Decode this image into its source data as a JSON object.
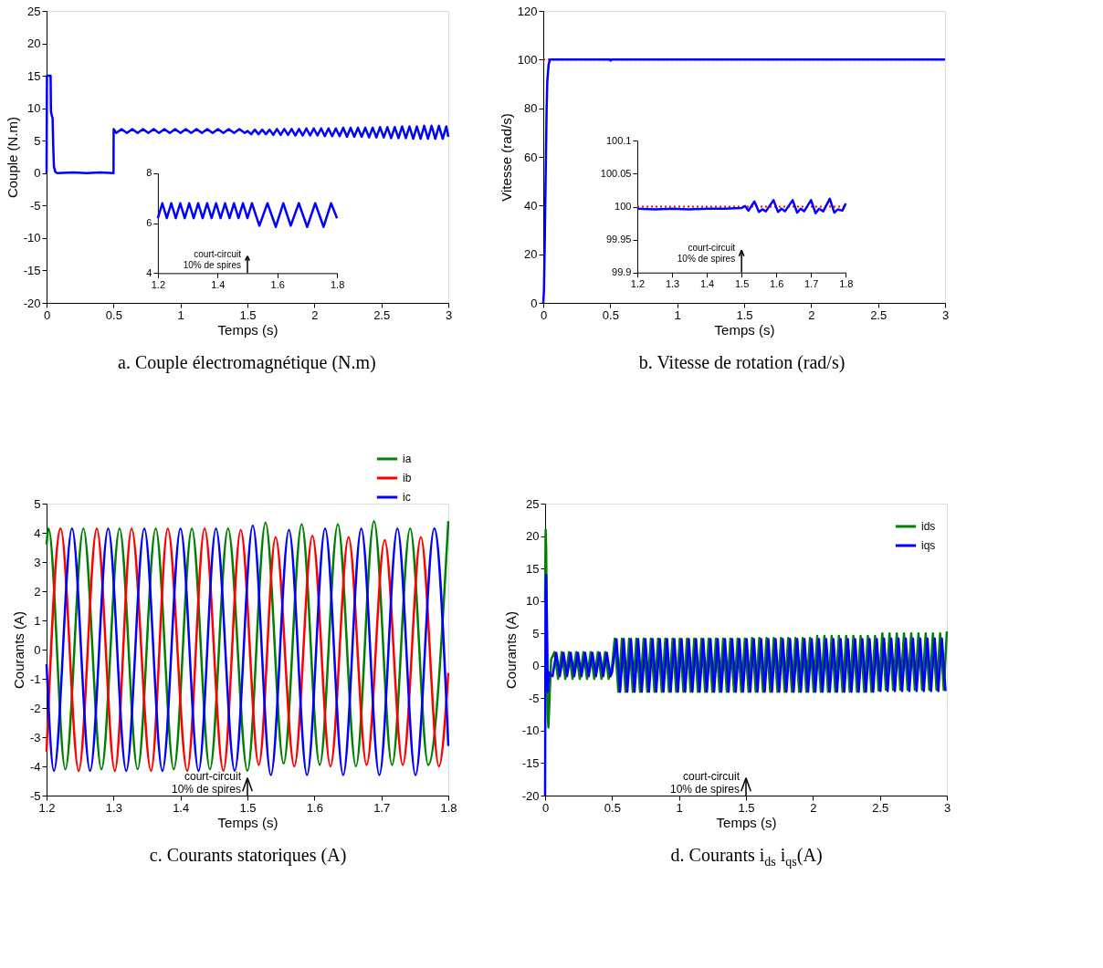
{
  "chart_data": [
    {
      "type": "line",
      "title": "a. Couple électromagnétique (N.m)",
      "xlabel": "Temps (s)",
      "ylabel": "Couple (N.m)",
      "xlim": [
        0,
        3
      ],
      "xticks": [
        0,
        0.5,
        1,
        1.5,
        2,
        2.5,
        3
      ],
      "ylim": [
        -20,
        25
      ],
      "yticks": [
        -20,
        -15,
        -10,
        -5,
        0,
        5,
        10,
        15,
        20,
        25
      ],
      "series": [
        {
          "color": "#0000ff",
          "x": [
            0,
            0.003,
            0.03,
            0.033,
            0.04,
            0.045,
            0.05,
            0.055,
            0.065,
            0.08,
            0.2,
            0.3,
            0.4,
            0.5,
            0.501,
            0.52,
            0.56,
            0.6,
            0.64,
            0.68,
            0.72,
            0.76,
            0.8,
            0.84,
            0.88,
            0.92,
            0.96,
            1.0,
            1.04,
            1.08,
            1.12,
            1.16,
            1.2,
            1.24,
            1.28,
            1.32,
            1.36,
            1.4,
            1.44,
            1.48,
            1.5,
            1.528,
            1.555,
            1.583,
            1.61,
            1.638,
            1.665,
            1.693,
            1.72,
            1.748,
            1.775,
            1.803,
            1.83,
            1.858,
            1.885,
            1.913,
            1.94,
            1.968,
            1.995,
            2.023,
            2.05,
            2.078,
            2.105,
            2.133,
            2.16,
            2.188,
            2.215,
            2.243,
            2.27,
            2.298,
            2.325,
            2.353,
            2.38,
            2.408,
            2.435,
            2.463,
            2.49,
            2.518,
            2.545,
            2.573,
            2.6,
            2.628,
            2.655,
            2.683,
            2.71,
            2.738,
            2.765,
            2.793,
            2.82,
            2.848,
            2.875,
            2.903,
            2.93,
            2.958,
            2.985,
            3.0
          ],
          "values": [
            0,
            15,
            15,
            9.5,
            8.8,
            8.5,
            4,
            1,
            0.2,
            0,
            0.1,
            0,
            0.1,
            0,
            6.8,
            6.2,
            6.8,
            6.2,
            6.8,
            6.2,
            6.8,
            6.2,
            6.8,
            6.2,
            6.8,
            6.2,
            6.8,
            6.2,
            6.8,
            6.2,
            6.8,
            6.2,
            6.8,
            6.2,
            6.8,
            6.2,
            6.8,
            6.2,
            6.8,
            6.2,
            6.5,
            6.0,
            6.7,
            6.0,
            6.7,
            6.0,
            6.7,
            5.9,
            6.8,
            5.9,
            6.8,
            5.9,
            6.8,
            5.8,
            6.8,
            5.8,
            6.9,
            5.8,
            6.9,
            5.8,
            6.9,
            5.7,
            6.9,
            5.7,
            6.9,
            5.7,
            7.0,
            5.6,
            7.0,
            5.6,
            7.0,
            5.6,
            7.0,
            5.5,
            7.0,
            5.5,
            7.1,
            5.5,
            7.1,
            5.4,
            7.1,
            5.4,
            7.2,
            5.4,
            7.2,
            5.3,
            7.2,
            5.3,
            7.3,
            5.3,
            7.3,
            5.3,
            7.3,
            5.3,
            7.2,
            5.6
          ]
        }
      ]
    },
    {
      "type": "line",
      "xlim": [
        1.2,
        1.8
      ],
      "xticks": [
        1.2,
        1.4,
        1.6,
        1.8
      ],
      "ylim": [
        4,
        8
      ],
      "yticks": [
        4,
        6,
        8
      ],
      "series": [
        {
          "color": "#0000ff",
          "x": [
            1.2,
            1.215,
            1.23,
            1.245,
            1.26,
            1.275,
            1.29,
            1.305,
            1.32,
            1.335,
            1.35,
            1.365,
            1.38,
            1.395,
            1.41,
            1.425,
            1.44,
            1.455,
            1.47,
            1.485,
            1.5,
            1.515,
            1.54,
            1.567,
            1.595,
            1.62,
            1.645,
            1.672,
            1.7,
            1.727,
            1.755,
            1.78,
            1.8
          ],
          "values": [
            6.2,
            6.8,
            6.2,
            6.8,
            6.2,
            6.8,
            6.2,
            6.8,
            6.2,
            6.8,
            6.2,
            6.8,
            6.2,
            6.8,
            6.2,
            6.8,
            6.2,
            6.8,
            6.2,
            6.8,
            6.2,
            6.8,
            5.9,
            6.8,
            5.85,
            6.8,
            5.9,
            6.8,
            5.85,
            6.8,
            5.85,
            6.8,
            6.2
          ]
        }
      ],
      "annotations": [
        "court-circuit\n10% de spires"
      ]
    },
    {
      "type": "line",
      "title": "b. Vitesse de rotation (rad/s)",
      "xlabel": "Temps (s)",
      "ylabel": "Vitesse (rad/s)",
      "xlim": [
        0,
        3
      ],
      "xticks": [
        0,
        0.5,
        1,
        1.5,
        2,
        2.5,
        3
      ],
      "ylim": [
        0,
        120
      ],
      "yticks": [
        0,
        20,
        40,
        60,
        80,
        100,
        120
      ],
      "ref_lines": [
        {
          "axis": "y",
          "value": 100,
          "color": "#ff0000",
          "line_style": "dotted"
        }
      ],
      "series": [
        {
          "color": "#0000ff",
          "x": [
            0,
            0.005,
            0.01,
            0.015,
            0.02,
            0.025,
            0.03,
            0.04,
            0.05,
            0.5,
            0.502,
            0.51,
            3
          ],
          "values": [
            0,
            5,
            21,
            41,
            61,
            80,
            91,
            98,
            100,
            100,
            99.6,
            100,
            100
          ]
        }
      ]
    },
    {
      "type": "line",
      "xlim": [
        1.2,
        1.8
      ],
      "xticks": [
        1.2,
        1.3,
        1.4,
        1.5,
        1.6,
        1.7,
        1.8
      ],
      "ylim": [
        99.9,
        100.1
      ],
      "yticks": [
        99.9,
        99.95,
        100,
        100.05,
        100.1
      ],
      "ref_lines": [
        {
          "axis": "y",
          "value": 100,
          "color": "#ff0000",
          "line_style": "dotted"
        }
      ],
      "series": [
        {
          "color": "#0000ff",
          "x": [
            1.2,
            1.25,
            1.3,
            1.35,
            1.4,
            1.45,
            1.5,
            1.51,
            1.52,
            1.537,
            1.55,
            1.56,
            1.57,
            1.592,
            1.605,
            1.615,
            1.625,
            1.647,
            1.66,
            1.67,
            1.68,
            1.7,
            1.713,
            1.723,
            1.735,
            1.754,
            1.767,
            1.777,
            1.79,
            1.8
          ],
          "values": [
            99.997,
            99.996,
            99.997,
            99.996,
            99.997,
            99.997,
            99.998,
            100.001,
            99.994,
            100.008,
            99.992,
            99.996,
            99.993,
            100.01,
            99.992,
            99.997,
            99.993,
            100.01,
            99.991,
            99.997,
            99.993,
            100.01,
            99.99,
            99.997,
            99.993,
            100.012,
            99.991,
            99.996,
            99.994,
            100.005
          ]
        }
      ],
      "annotations": [
        "court-circuit\n10% de spires"
      ]
    },
    {
      "type": "line",
      "title": "c. Courants statoriques (A)",
      "xlabel": "Temps (s)",
      "ylabel": "Courants (A)",
      "xlim": [
        1.2,
        1.8
      ],
      "xticks": [
        1.2,
        1.3,
        1.4,
        1.5,
        1.6,
        1.7,
        1.8
      ],
      "ylim": [
        -5,
        5
      ],
      "yticks": [
        -5,
        -4,
        -3,
        -2,
        -1,
        0,
        1,
        2,
        3,
        4,
        5
      ],
      "legend": "top",
      "series": [
        {
          "name": "ia",
          "color": "#008000",
          "x": [
            1.2,
            1.203,
            1.228,
            1.255,
            1.282,
            1.309,
            1.336,
            1.363,
            1.39,
            1.417,
            1.444,
            1.471,
            1.5,
            1.527,
            1.554,
            1.581,
            1.608,
            1.635,
            1.662,
            1.689,
            1.716,
            1.743,
            1.77,
            1.8
          ],
          "values": [
            3.6,
            4.15,
            -4.1,
            4.15,
            -4.1,
            4.15,
            -4.1,
            4.15,
            -4.1,
            4.15,
            -4.1,
            4.15,
            -4.15,
            4.35,
            -3.9,
            4.3,
            -3.95,
            4.3,
            -4.0,
            4.4,
            -3.95,
            4.15,
            -3.95,
            4.4
          ]
        },
        {
          "name": "ib",
          "color": "#ff0000",
          "x": [
            1.2,
            1.221,
            1.248,
            1.275,
            1.302,
            1.327,
            1.356,
            1.381,
            1.41,
            1.436,
            1.464,
            1.49,
            1.517,
            1.542,
            1.57,
            1.597,
            1.624,
            1.651,
            1.678,
            1.705,
            1.732,
            1.759,
            1.786,
            1.8
          ],
          "values": [
            -3.5,
            4.15,
            -4.15,
            4.15,
            -4.15,
            4.15,
            -4.15,
            4.15,
            -4.15,
            4.15,
            -4.15,
            4.1,
            -3.95,
            3.85,
            -4.0,
            3.9,
            -4.0,
            3.85,
            -3.95,
            3.75,
            -3.95,
            3.85,
            -4.0,
            -0.8
          ]
        },
        {
          "name": "ic",
          "color": "#0000ff",
          "x": [
            1.2,
            1.211,
            1.238,
            1.265,
            1.292,
            1.319,
            1.346,
            1.373,
            1.4,
            1.427,
            1.453,
            1.481,
            1.508,
            1.535,
            1.562,
            1.589,
            1.616,
            1.643,
            1.67,
            1.697,
            1.724,
            1.751,
            1.779,
            1.8
          ],
          "values": [
            -0.5,
            -4.15,
            4.15,
            -4.15,
            4.15,
            -4.15,
            4.15,
            -4.15,
            4.15,
            -4.15,
            4.15,
            -4.15,
            4.25,
            -4.3,
            4.1,
            -4.3,
            4.15,
            -4.3,
            4.15,
            -4.3,
            4.15,
            -4.3,
            4.15,
            -3.3
          ]
        }
      ],
      "annotations": [
        "court-circuit\n10% de spires"
      ]
    },
    {
      "type": "line",
      "title": "d. Courants i$_{ds}$ i$_{qs}$(A)",
      "xlabel": "Temps (s)",
      "ylabel": "Courants (A)",
      "xlim": [
        0,
        3
      ],
      "xticks": [
        0,
        0.5,
        1,
        1.5,
        2,
        2.5,
        3
      ],
      "ylim": [
        -20,
        25
      ],
      "yticks": [
        -20,
        -15,
        -10,
        -5,
        0,
        5,
        10,
        15,
        20,
        25
      ],
      "legend": "top right",
      "series": [
        {
          "name": "ids",
          "color": "#008000",
          "x": [
            0,
            0.004,
            0.008,
            0.015,
            0.02,
            0.025,
            0.035,
            0.045,
            0.07,
            0.097,
            0.124,
            0.151,
            0.178,
            0.205,
            0.232,
            0.259,
            0.286,
            0.313,
            0.34,
            0.367,
            0.394,
            0.421,
            0.448,
            0.475,
            0.5,
            0.52,
            0.547,
            0.574,
            0.601,
            0.628,
            0.655,
            0.682,
            0.709,
            0.736,
            0.763,
            0.79,
            0.817,
            0.844,
            0.871,
            0.898,
            0.925,
            0.952,
            0.979,
            1.006,
            1.033,
            1.06,
            1.087,
            1.114,
            1.141,
            1.168,
            1.195,
            1.222,
            1.249,
            1.276,
            1.303,
            1.33,
            1.357,
            1.384,
            1.411,
            1.438,
            1.465,
            1.492,
            1.519,
            1.546,
            1.573,
            1.6,
            1.627,
            1.654,
            1.681,
            1.708,
            1.735,
            1.762,
            1.789,
            1.816,
            1.843,
            1.87,
            1.897,
            1.924,
            1.951,
            1.978,
            2.005,
            2.032,
            2.059,
            2.086,
            2.113,
            2.14,
            2.167,
            2.194,
            2.221,
            2.248,
            2.275,
            2.302,
            2.329,
            2.356,
            2.383,
            2.41,
            2.437,
            2.464,
            2.491,
            2.518,
            2.545,
            2.572,
            2.599,
            2.626,
            2.653,
            2.68,
            2.707,
            2.734,
            2.761,
            2.788,
            2.815,
            2.842,
            2.869,
            2.896,
            2.923,
            2.95,
            2.977,
            3.0
          ],
          "values": [
            10,
            21,
            18,
            -2,
            -8,
            -9.5,
            -4,
            1,
            2.1,
            -2.0,
            2.1,
            -2.0,
            2.1,
            -2.0,
            2.1,
            -2.0,
            2.1,
            -2.0,
            2.1,
            -2.0,
            2.1,
            -2.0,
            2.1,
            -2.0,
            0,
            4.2,
            -4.0,
            4.2,
            -4.0,
            4.2,
            -4.0,
            4.2,
            -4.0,
            4.2,
            -4.0,
            4.2,
            -4.0,
            4.2,
            -4.0,
            4.2,
            -4.0,
            4.2,
            -4.0,
            4.2,
            -4.0,
            4.2,
            -4.0,
            4.2,
            -4.0,
            4.2,
            -4.0,
            4.2,
            -4.0,
            4.2,
            -4.0,
            4.2,
            -4.0,
            4.2,
            -4.0,
            4.2,
            -4.0,
            4.2,
            -4.0,
            4.3,
            -4.0,
            4.3,
            -4.0,
            4.3,
            -4.0,
            4.3,
            -4.0,
            4.3,
            -4.0,
            4.3,
            -4.0,
            4.3,
            -4.0,
            4.3,
            -4.0,
            4.3,
            -4.0,
            4.6,
            -4.0,
            4.6,
            -4.0,
            4.6,
            -4.0,
            4.6,
            -4.0,
            4.6,
            -4.0,
            4.6,
            -4.0,
            4.6,
            -4.0,
            4.6,
            -4.0,
            4.6,
            -3.8,
            5.0,
            -3.7,
            5.0,
            -3.7,
            5.0,
            -3.7,
            5.0,
            -3.7,
            5.0,
            -3.7,
            5.0,
            -3.7,
            5.0,
            -3.7,
            5.0,
            -3.7,
            5.0,
            -3.7,
            5.3
          ]
        },
        {
          "name": "iqs",
          "color": "#0000ff",
          "x": [
            0,
            0.003,
            0.008,
            0.013,
            0.02,
            0.03,
            0.045,
            0.056,
            0.083,
            0.11,
            0.137,
            0.164,
            0.191,
            0.218,
            0.245,
            0.272,
            0.299,
            0.326,
            0.353,
            0.38,
            0.407,
            0.434,
            0.461,
            0.488,
            0.5,
            0.533,
            0.56,
            0.587,
            0.614,
            0.641,
            0.668,
            0.695,
            0.722,
            0.749,
            0.776,
            0.803,
            0.83,
            0.857,
            0.884,
            0.911,
            0.938,
            0.965,
            0.992,
            1.019,
            1.046,
            1.073,
            1.1,
            1.127,
            1.154,
            1.181,
            1.208,
            1.235,
            1.262,
            1.289,
            1.316,
            1.343,
            1.37,
            1.397,
            1.424,
            1.451,
            1.478,
            1.505,
            1.532,
            1.559,
            1.586,
            1.613,
            1.64,
            1.667,
            1.694,
            1.721,
            1.748,
            1.775,
            1.802,
            1.829,
            1.856,
            1.883,
            1.91,
            1.937,
            1.964,
            1.991,
            2.018,
            2.045,
            2.072,
            2.099,
            2.126,
            2.153,
            2.18,
            2.207,
            2.234,
            2.261,
            2.288,
            2.315,
            2.342,
            2.369,
            2.396,
            2.423,
            2.45,
            2.477,
            2.504,
            2.531,
            2.558,
            2.585,
            2.612,
            2.639,
            2.666,
            2.693,
            2.72,
            2.747,
            2.774,
            2.801,
            2.828,
            2.855,
            2.882,
            2.909,
            2.936,
            2.963,
            2.99
          ],
          "values": [
            -20,
            10,
            14,
            8,
            -4,
            -1,
            -1.5,
            -1.6,
            2.0,
            -1.6,
            2.0,
            -1.6,
            2.0,
            -1.6,
            2.0,
            -1.6,
            2.0,
            -1.6,
            2.0,
            -1.6,
            2.0,
            -1.6,
            2.0,
            -1.6,
            -1,
            4.1,
            -4.0,
            4.1,
            -4.0,
            4.1,
            -4.0,
            4.1,
            -4.0,
            4.1,
            -4.0,
            4.1,
            -4.0,
            4.1,
            -4.0,
            4.1,
            -4.0,
            4.1,
            -4.0,
            4.1,
            -4.0,
            4.1,
            -4.0,
            4.1,
            -4.0,
            4.1,
            -4.0,
            4.1,
            -4.0,
            4.1,
            -4.0,
            4.1,
            -4.0,
            4.1,
            -4.0,
            4.1,
            -4.0,
            4.1,
            -4.0,
            4.1,
            -4.0,
            4.1,
            -4.0,
            4.1,
            -4.0,
            4.1,
            -4.0,
            4.1,
            -4.0,
            4.1,
            -4.0,
            4.1,
            -4.0,
            4.1,
            -4.0,
            4.1,
            -4.0,
            4.1,
            -4.0,
            4.1,
            -4.0,
            4.1,
            -4.0,
            4.1,
            -4.0,
            4.1,
            -4.0,
            4.1,
            -4.0,
            4.1,
            -4.0,
            4.1,
            -4.0,
            4.1,
            -3.9,
            4.2,
            -3.9,
            4.2,
            -3.9,
            4.2,
            -3.9,
            4.2,
            -3.9,
            4.2,
            -3.9,
            4.2,
            -3.9,
            4.2,
            -3.9,
            4.2,
            -3.9,
            4.2,
            -3.9
          ]
        }
      ],
      "annotations": [
        "court-circuit\n10% de spires"
      ]
    }
  ]
}
